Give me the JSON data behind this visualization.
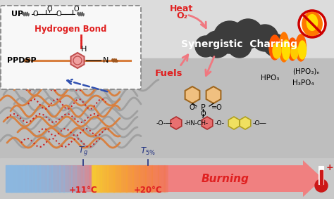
{
  "figsize": [
    4.74,
    2.83
  ],
  "dpi": 100,
  "bg_main": "#c8c8c8",
  "bg_top": "#e0e0e0",
  "bg_bottom": "#d0d0d0",
  "burning_text": "Burning",
  "burning_color": "#e02020",
  "tg_label": "$T_g$",
  "t5_label": "$T_{5\\%}$",
  "temp1": "+11°C",
  "temp2": "+20°C",
  "synergistic_text": "Synergistic  Charring",
  "fuels_text": "Fuels",
  "heat_text": "Heat",
  "o2_text": "O₂",
  "hpo3_text": "HPO₃",
  "h3po4_text": "H₃PO₄",
  "hpo3n_text": "(HPO₃)ₙ",
  "hbond_text": "Hydrogen Bond",
  "up_text": "UP",
  "ppdsp_text": "PPDSP",
  "red": "#e02020",
  "darkred": "#cc0000",
  "pink": "#f07880",
  "blue": "#3050b0",
  "orange": "#e08040",
  "smoke": "#3a3a3a",
  "white": "#ffffff"
}
